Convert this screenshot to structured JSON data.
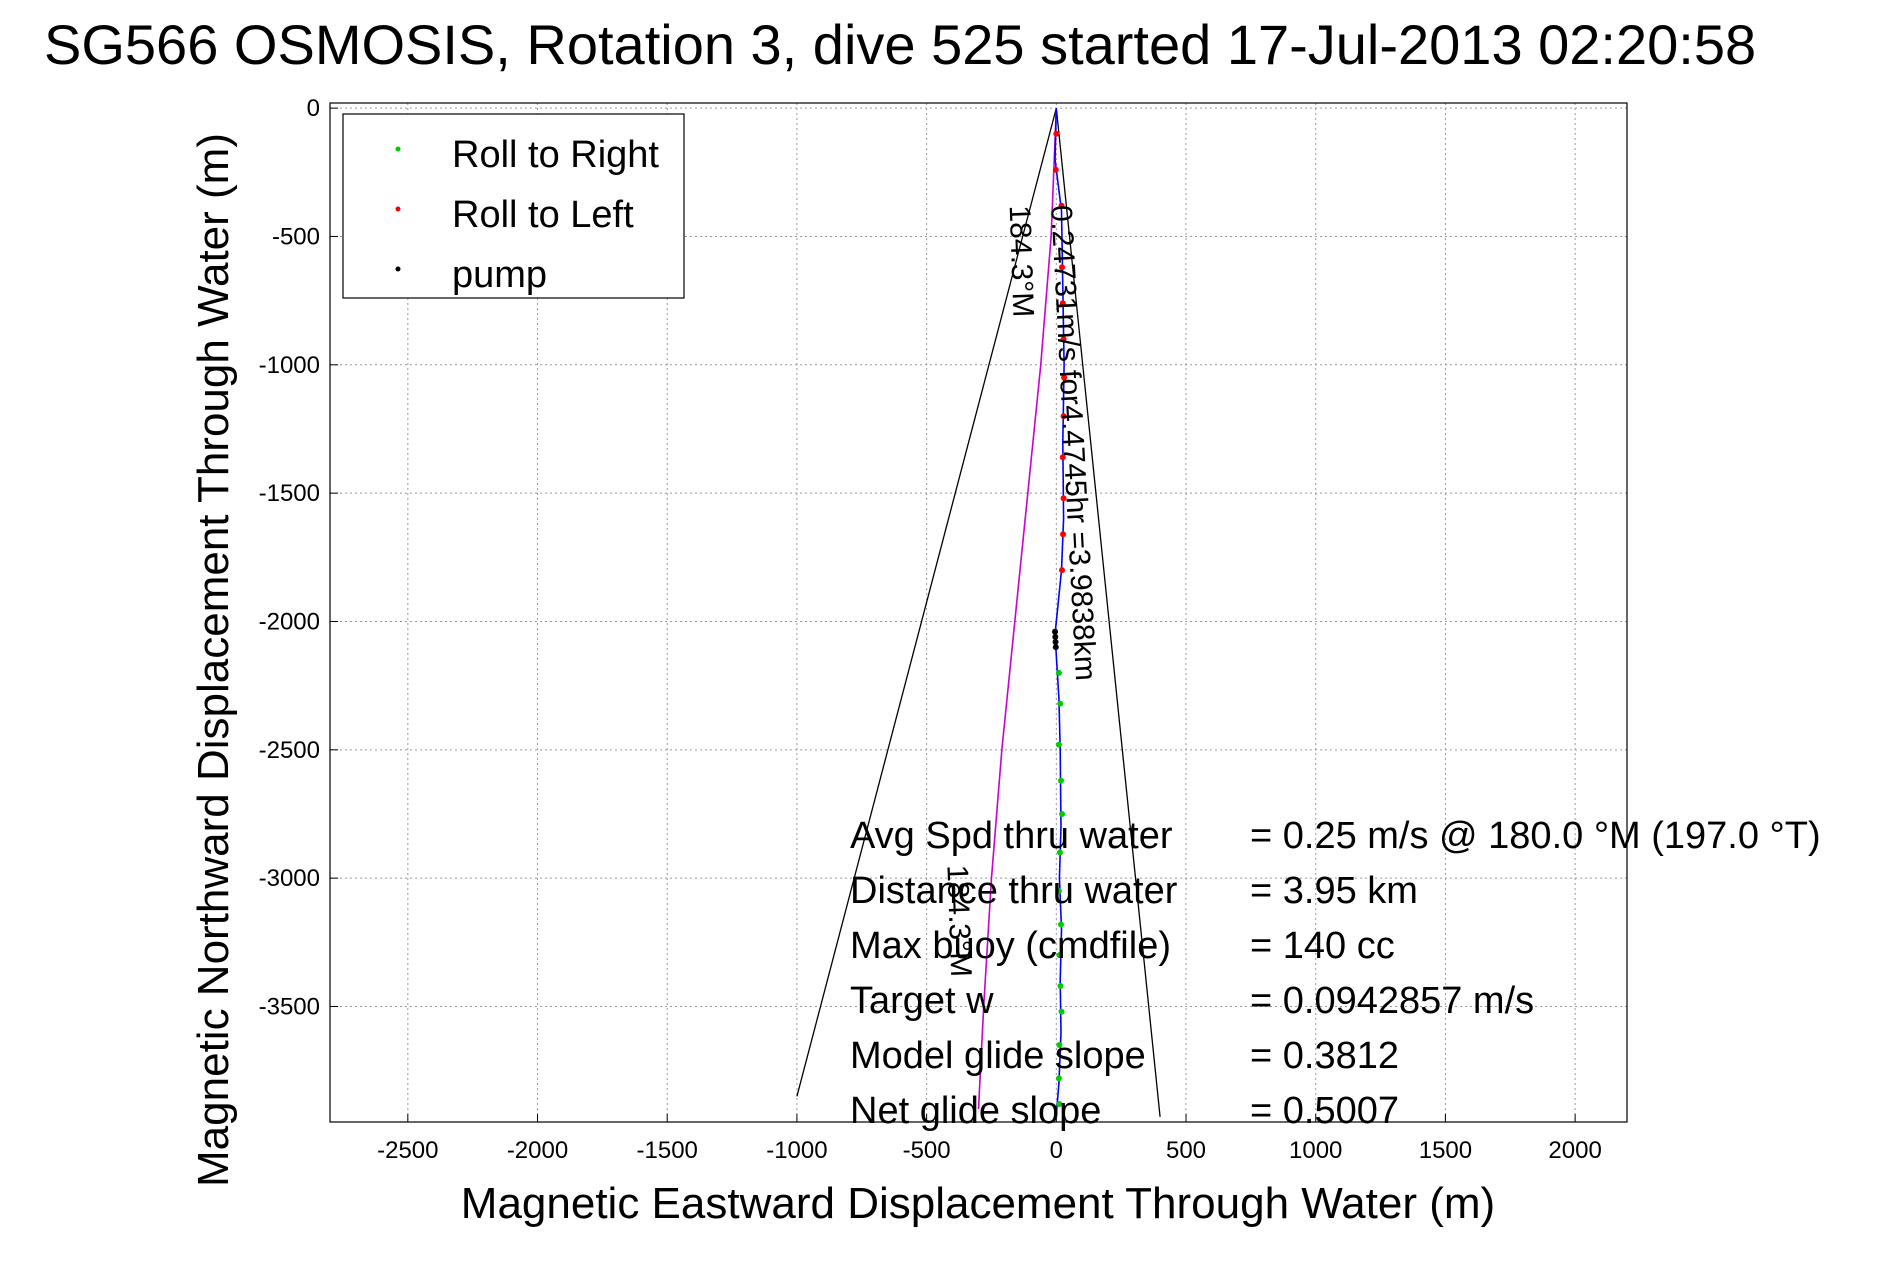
{
  "chart_data": {
    "type": "scatter",
    "title": "SG566 OSMOSIS, Rotation 3, dive 525 started 17-Jul-2013 02:20:58",
    "xlabel": "Magnetic Eastward Displacement Through Water (m)",
    "ylabel": "Magnetic Northward Displacement Through Water (m)",
    "xlim": [
      -2800,
      2200
    ],
    "ylim": [
      -3950,
      20
    ],
    "xticks": [
      -2500,
      -2000,
      -1500,
      -1000,
      -500,
      0,
      500,
      1000,
      1500,
      2000
    ],
    "yticks": [
      0,
      -500,
      -1000,
      -1500,
      -2000,
      -2500,
      -3000,
      -3500
    ],
    "xtick_labels": [
      "-2500",
      "-2000",
      "-1500",
      "-1000",
      "-500",
      "0",
      "500",
      "1000",
      "1500",
      "2000"
    ],
    "ytick_labels": [
      "0",
      "-500",
      "-1000",
      "-1500",
      "-2000",
      "-2500",
      "-3000",
      "-3500"
    ],
    "grid": true,
    "legend_placement": "top-left",
    "legend": [
      {
        "label": "Roll to Right",
        "color": "#00cc00"
      },
      {
        "label": "Roll to Left",
        "color": "#ff0000"
      },
      {
        "label": "pump",
        "color": "#000000"
      }
    ],
    "colors": {
      "track": "#0000ff",
      "model_track": "#cc00cc",
      "cone": "#000000"
    },
    "series": [
      {
        "name": "Roll to Right",
        "color": "#00cc00",
        "points": [
          [
            10,
            -2200
          ],
          [
            15,
            -2320
          ],
          [
            10,
            -2480
          ],
          [
            18,
            -2620
          ],
          [
            22,
            -2750
          ],
          [
            14,
            -2900
          ],
          [
            10,
            -3050
          ],
          [
            18,
            -3180
          ],
          [
            12,
            -3300
          ],
          [
            16,
            -3420
          ],
          [
            20,
            -3520
          ],
          [
            12,
            -3650
          ],
          [
            10,
            -3780
          ],
          [
            12,
            -3880
          ]
        ]
      },
      {
        "name": "Roll to Left",
        "color": "#ff0000",
        "points": [
          [
            0,
            -100
          ],
          [
            -2,
            -240
          ],
          [
            20,
            -380
          ],
          [
            22,
            -620
          ],
          [
            25,
            -760
          ],
          [
            28,
            -900
          ],
          [
            30,
            -1050
          ],
          [
            28,
            -1200
          ],
          [
            25,
            -1360
          ],
          [
            28,
            -1520
          ],
          [
            26,
            -1660
          ],
          [
            22,
            -1800
          ]
        ]
      },
      {
        "name": "pump",
        "color": "#000000",
        "points": [
          [
            -5,
            -2040
          ],
          [
            -4,
            -2060
          ],
          [
            -3,
            -2080
          ],
          [
            -2,
            -2100
          ]
        ]
      }
    ],
    "track_line": {
      "x": [
        0,
        -5,
        20,
        25,
        30,
        25,
        28,
        20,
        -5,
        10,
        15,
        18,
        12,
        20,
        15,
        18,
        10,
        0
      ],
      "y": [
        0,
        -200,
        -400,
        -700,
        -1000,
        -1300,
        -1600,
        -1800,
        -2050,
        -2300,
        -2500,
        -2800,
        -3000,
        -3200,
        -3400,
        -3600,
        -3800,
        -3920
      ]
    },
    "model_line": {
      "x": [
        0,
        -20,
        -60,
        -110,
        -160,
        -210,
        -250,
        -280,
        -300
      ],
      "y": [
        0,
        -500,
        -1000,
        -1500,
        -2000,
        -2500,
        -3000,
        -3500,
        -3900
      ]
    },
    "cone_lines": [
      {
        "x": [
          0,
          -1000
        ],
        "y": [
          0,
          -3850
        ]
      },
      {
        "x": [
          0,
          400
        ],
        "y": [
          0,
          -3930
        ]
      }
    ],
    "annotations": [
      {
        "text": "184.3°M",
        "x": -180,
        "y": -380,
        "angle": 88
      },
      {
        "text": "0.24731m/s for4.4745hr =3.9838km",
        "x": -20,
        "y": -380,
        "angle": 87
      },
      {
        "text": "184.3°M",
        "x": -420,
        "y": -2950,
        "angle": 88
      }
    ],
    "stats": [
      {
        "label": "Avg Spd thru water",
        "value": "=  0.25 m/s @ 180.0 °M (197.0 °T)"
      },
      {
        "label": "Distance thru water",
        "value": "=  3.95 km"
      },
      {
        "label": "Max buoy (cmdfile)",
        "value": "= 140 cc"
      },
      {
        "label": "Target w",
        "value": "= 0.0942857 m/s"
      },
      {
        "label": "Model glide slope",
        "value": "= 0.3812"
      },
      {
        "label": "Net glide slope",
        "value": "= 0.5007"
      }
    ]
  }
}
